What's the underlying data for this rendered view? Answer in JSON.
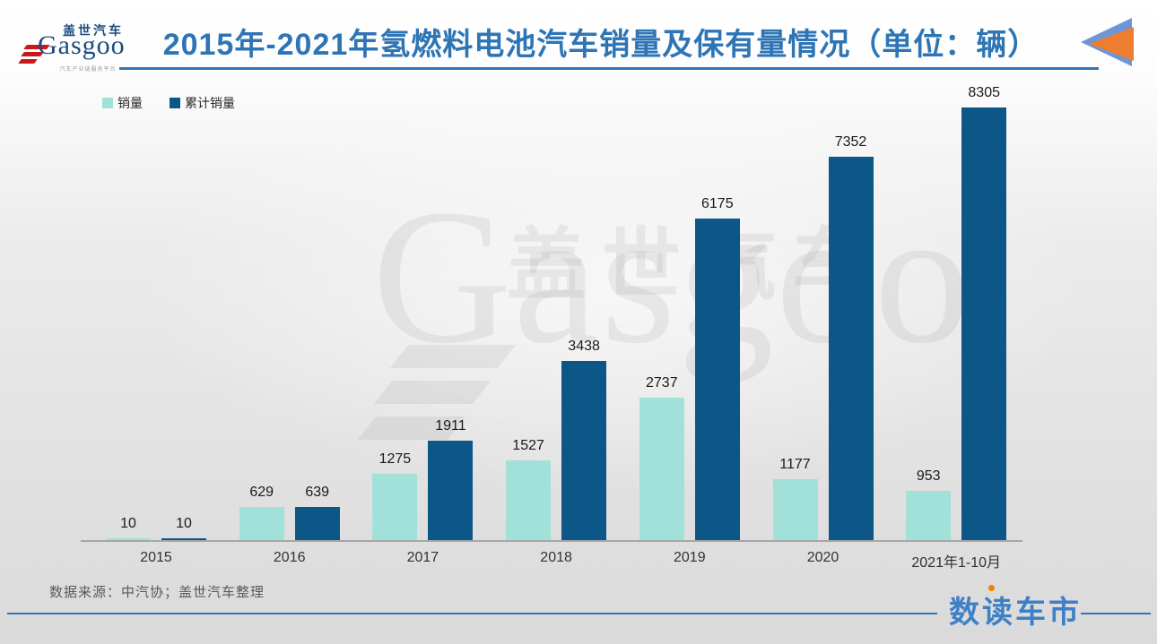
{
  "header": {
    "title": "2015年-2021年氢燃料电池汽车销量及保有量情况（单位：辆）",
    "logo": {
      "brand_cn": "盖世汽车",
      "brand_en": "Gasgoo",
      "tagline": "汽车产业链服务平台"
    }
  },
  "chart_data": {
    "type": "bar",
    "title": "2015年-2021年氢燃料电池汽车销量及保有量情况（单位：辆）",
    "categories": [
      "2015",
      "2016",
      "2017",
      "2018",
      "2019",
      "2020",
      "2021年1-10月"
    ],
    "series": [
      {
        "name": "销量",
        "color": "#A2E1D9",
        "values": [
          10,
          629,
          1275,
          1527,
          2737,
          1177,
          953
        ]
      },
      {
        "name": "累计销量",
        "color": "#0D5788",
        "values": [
          10,
          639,
          1911,
          3438,
          6175,
          7352,
          8305
        ]
      }
    ],
    "ylim": [
      0,
      8305
    ],
    "value_labels": true,
    "grid": false,
    "legend_position": "top-left",
    "xlabel": "",
    "ylabel": ""
  },
  "watermark": {
    "text_cn": "盖世汽车",
    "text_en": "Gasgoo"
  },
  "footer": {
    "source": "数据来源：中汽协；盖世汽车整理",
    "brand": "数读车市"
  },
  "colors": {
    "title_blue": "#2E75B6",
    "bar_sales": "#A2E1D9",
    "bar_cumulative": "#0D5788",
    "axis_gray": "#A6A6A6",
    "source_text": "#595959",
    "logo_navy": "#1B4B7E",
    "logo_red": "#C8161E",
    "arrow_blue": "#6C96D6",
    "arrow_orange": "#ED7D31",
    "brand_blue": "#3E80C6",
    "brand_dot_orange": "#F08300"
  }
}
